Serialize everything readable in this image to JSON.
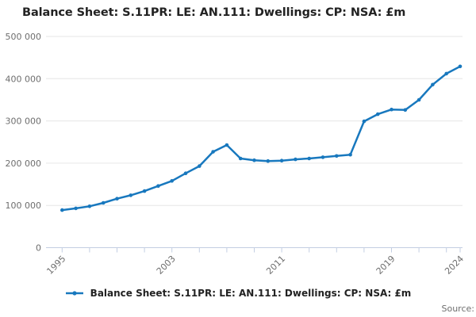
{
  "title": "Balance Sheet: S.11PR: LE: AN.111: Dwellings: CP: NSA: £m",
  "legend": {
    "label": "Balance Sheet: S.11PR: LE: AN.111: Dwellings: CP: NSA: £m"
  },
  "source_label": "Source:",
  "colors": {
    "line": "#1878be",
    "grid": "#e6e6e6",
    "axis": "#c3cee2",
    "text": "#222222",
    "muted": "#6e6e6e"
  },
  "chart_data": {
    "type": "line",
    "title": "Balance Sheet: S.11PR: LE: AN.111: Dwellings: CP: NSA: £m",
    "xlabel": "",
    "ylabel": "",
    "x": [
      1995,
      1996,
      1997,
      1998,
      1999,
      2000,
      2001,
      2002,
      2003,
      2004,
      2005,
      2006,
      2007,
      2008,
      2009,
      2010,
      2011,
      2012,
      2013,
      2014,
      2015,
      2016,
      2017,
      2018,
      2019,
      2020,
      2021,
      2022,
      2023,
      2024
    ],
    "series": [
      {
        "name": "Balance Sheet: S.11PR: LE: AN.111: Dwellings: CP: NSA: £m",
        "values": [
          89000,
          93000,
          98000,
          106000,
          116000,
          124000,
          134000,
          146000,
          158000,
          176000,
          193000,
          227000,
          243000,
          211000,
          207000,
          205000,
          206000,
          209000,
          211000,
          214000,
          217000,
          220000,
          299000,
          316000,
          327000,
          326000,
          350000,
          386000,
          412000,
          429000
        ]
      }
    ],
    "ylim": [
      0,
      500000
    ],
    "yticks": [
      0,
      100000,
      200000,
      300000,
      400000,
      500000
    ],
    "ytick_labels": [
      "0",
      "100 000",
      "200 000",
      "300 000",
      "400 000",
      "500 000"
    ],
    "xticks": [
      1995,
      1997,
      1999,
      2001,
      2003,
      2005,
      2007,
      2009,
      2011,
      2013,
      2015,
      2017,
      2019,
      2021,
      2023,
      2024
    ],
    "xtick_labeled": [
      1995,
      2003,
      2011,
      2019,
      2024
    ],
    "grid": "horizontal",
    "legend_position": "bottom",
    "marker": "circle"
  }
}
